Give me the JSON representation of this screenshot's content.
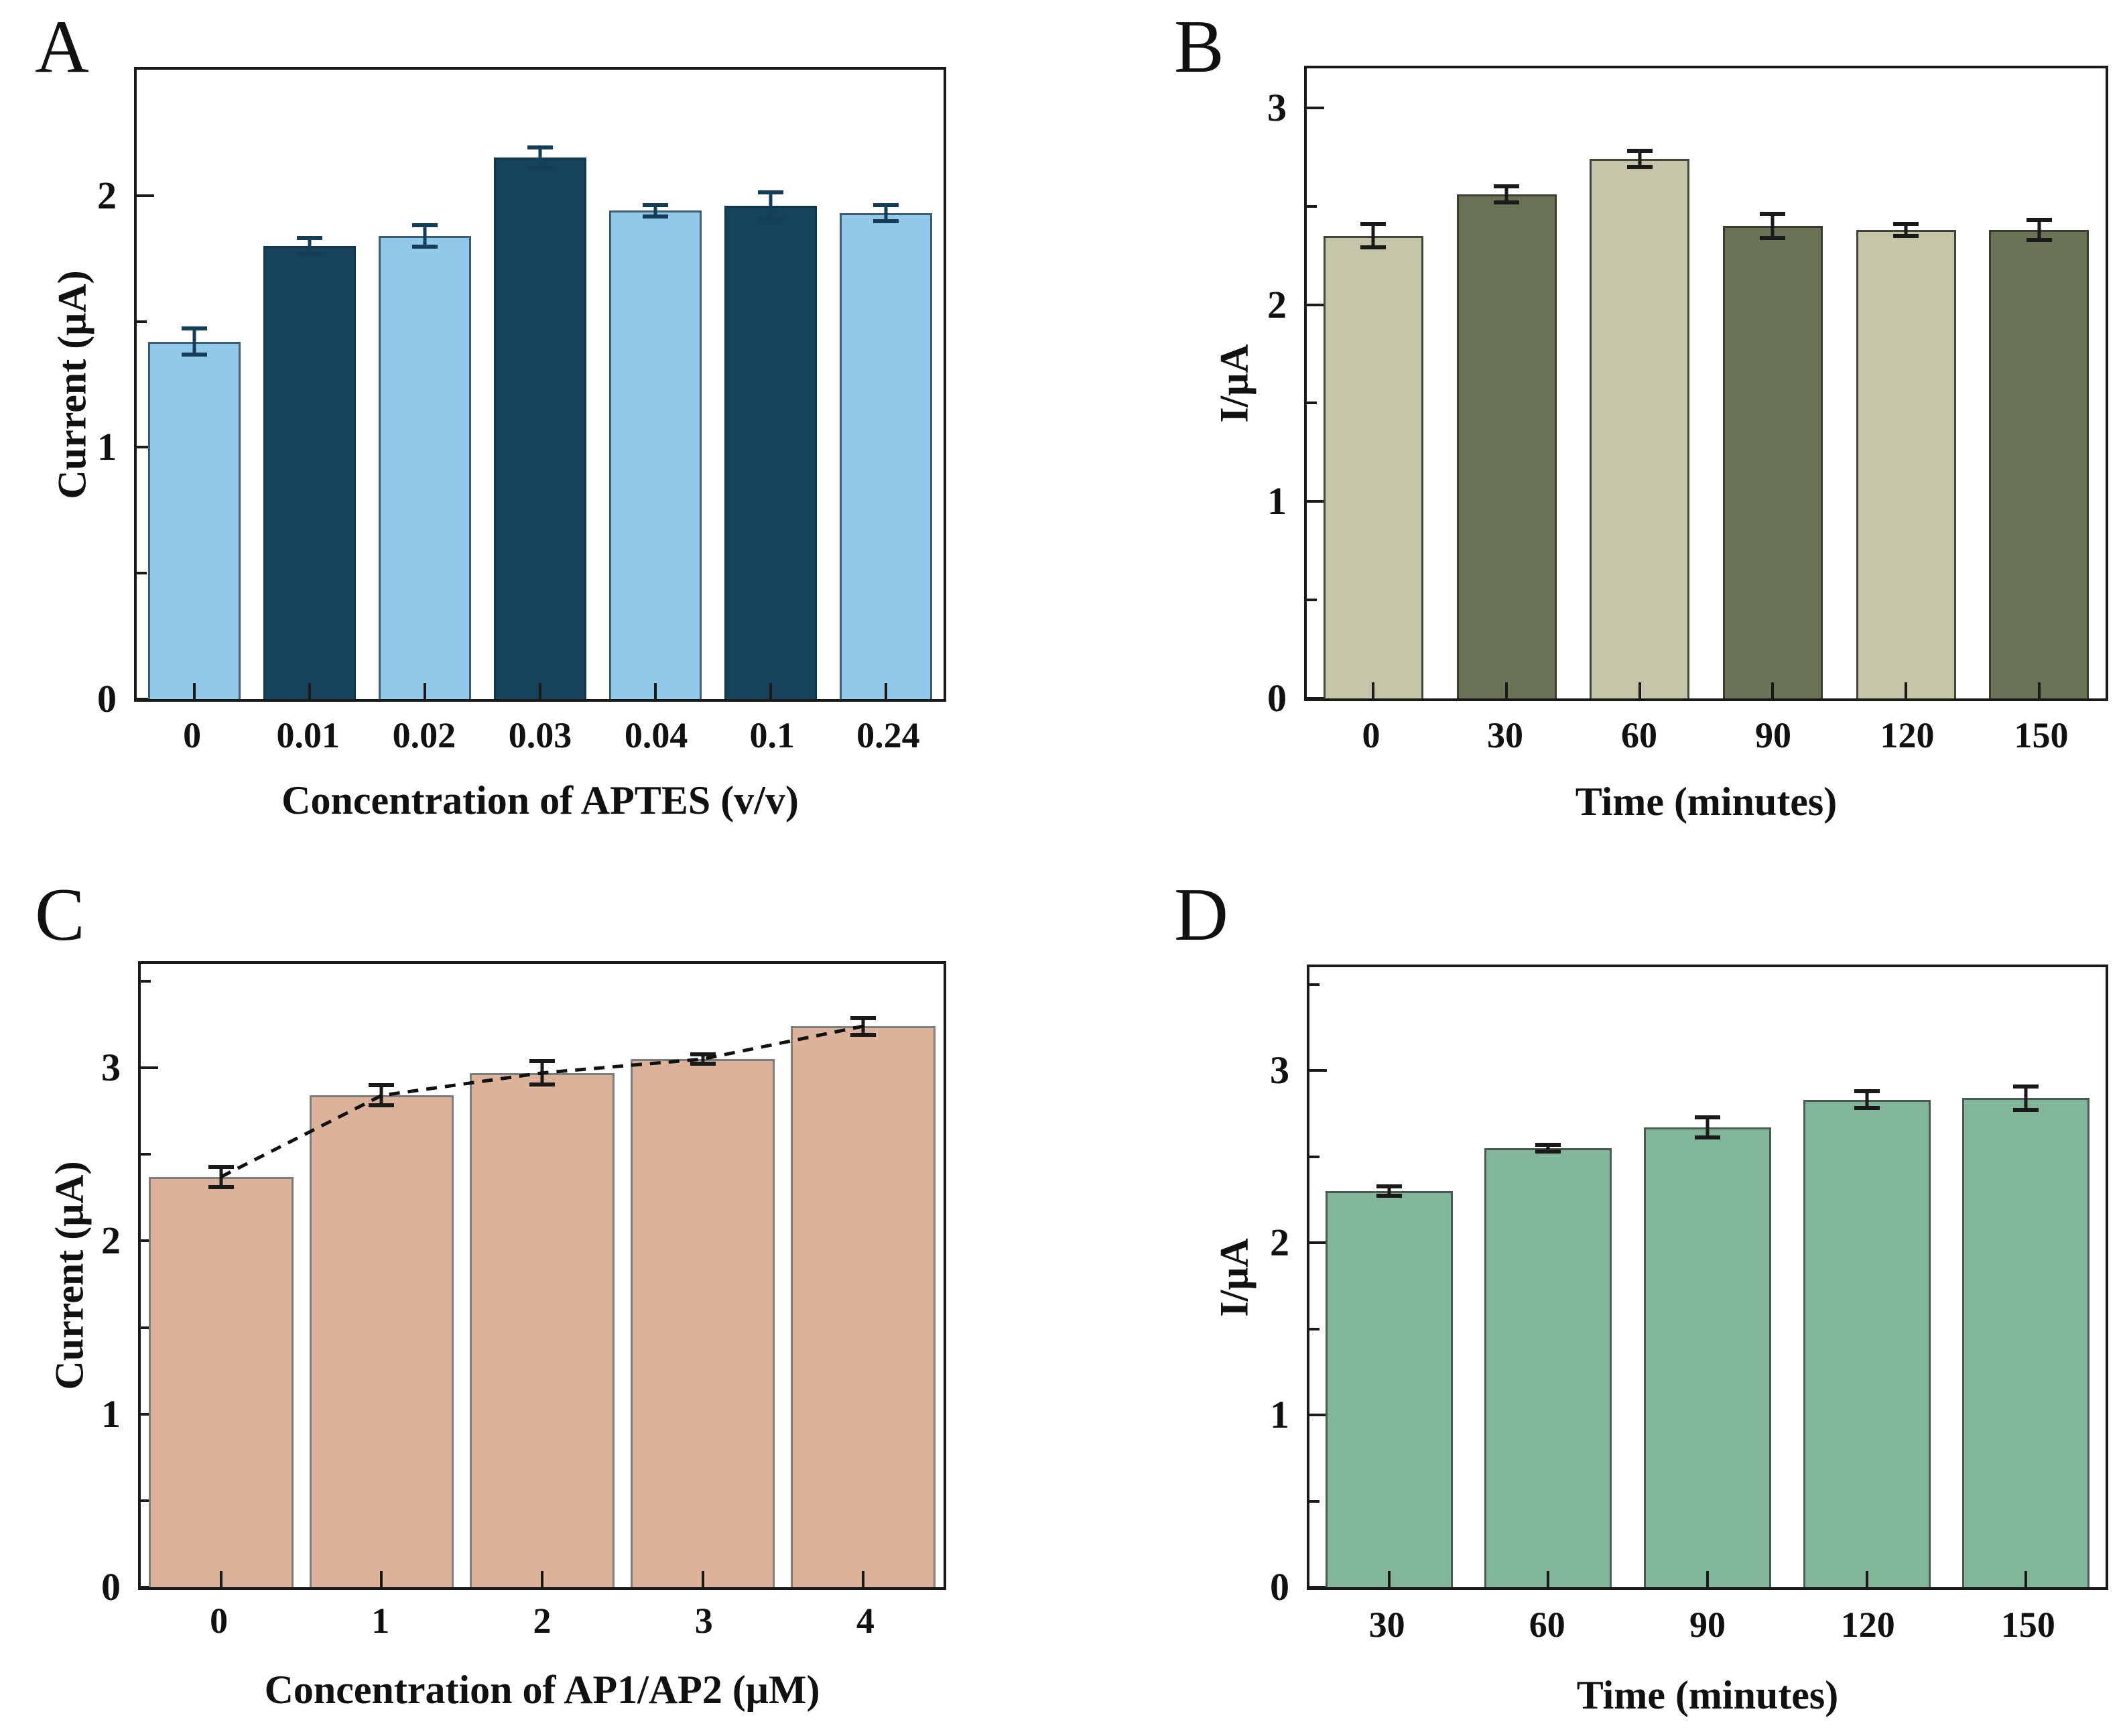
{
  "figure": {
    "background": "#ffffff",
    "axis_color": "#1a1a1a"
  },
  "chart_data": [
    {
      "type": "bar",
      "panel_label": "A",
      "title": "",
      "xlabel": "Concentration of APTES (v/v)",
      "ylabel": "Current (μA)",
      "categories": [
        "0",
        "0.01",
        "0.02",
        "0.03",
        "0.04",
        "0.1",
        "0.24"
      ],
      "values": [
        1.42,
        1.8,
        1.84,
        2.15,
        1.94,
        1.96,
        1.93
      ],
      "errors": [
        0.06,
        0.04,
        0.05,
        0.05,
        0.03,
        0.06,
        0.04
      ],
      "ylim": [
        0,
        2.5
      ],
      "yticks": [
        0,
        1,
        2
      ],
      "minor_tick_step": 0.5,
      "grid": false,
      "legend": null,
      "bar_width_frac": 0.8,
      "bar_colors": [
        "#93c9e8",
        "#16425c",
        "#93c9e8",
        "#16425c",
        "#93c9e8",
        "#16425c",
        "#93c9e8"
      ],
      "bar_border_colors": [
        "#3c5e74",
        "#10374e",
        "#3c5e74",
        "#10374e",
        "#3c5e74",
        "#10374e",
        "#3c5e74"
      ],
      "error_color": "#143d57"
    },
    {
      "type": "bar",
      "panel_label": "B",
      "title": "",
      "xlabel": "Time (minutes)",
      "ylabel": "I/μA",
      "categories": [
        "0",
        "30",
        "60",
        "90",
        "120",
        "150"
      ],
      "values": [
        2.35,
        2.56,
        2.74,
        2.4,
        2.38,
        2.38
      ],
      "errors": [
        0.07,
        0.05,
        0.05,
        0.07,
        0.04,
        0.06
      ],
      "ylim": [
        0,
        3.2
      ],
      "yticks": [
        0,
        1,
        2,
        3
      ],
      "minor_tick_step": 0.5,
      "grid": false,
      "legend": null,
      "bar_width_frac": 0.75,
      "bar_colors": [
        "#c5c5aa",
        "#6b7357",
        "#c5c5aa",
        "#6b7357",
        "#c5c5aa",
        "#6b7357"
      ],
      "bar_border_colors": [
        "#43453a",
        "#383b2e",
        "#43453a",
        "#383b2e",
        "#43453a",
        "#383b2e"
      ],
      "error_color": "#1a1a1a"
    },
    {
      "type": "bar",
      "panel_label": "C",
      "title": "",
      "xlabel": "Concentration of AP1/AP2 (μM)",
      "ylabel": "Current (μA)",
      "categories": [
        "0",
        "1",
        "2",
        "3",
        "4"
      ],
      "values": [
        2.37,
        2.84,
        2.97,
        3.05,
        3.24
      ],
      "errors": [
        0.07,
        0.07,
        0.08,
        0.04,
        0.06
      ],
      "ylim": [
        0,
        3.6
      ],
      "yticks": [
        0,
        1,
        2,
        3
      ],
      "minor_tick_step": 0.5,
      "grid": false,
      "legend": null,
      "bar_width_frac": 0.9,
      "bar_colors": [
        "#dcb29a",
        "#dcb29a",
        "#dcb29a",
        "#dcb29a",
        "#dcb29a"
      ],
      "bar_border_colors": [
        "#7d7d7d",
        "#7d7d7d",
        "#7d7d7d",
        "#7d7d7d",
        "#7d7d7d"
      ],
      "error_color": "#1a1a1a",
      "line_overlay": {
        "show": true,
        "color": "#111111",
        "dash": "16 12",
        "width": 5
      }
    },
    {
      "type": "bar",
      "panel_label": "D",
      "title": "",
      "xlabel": "Time (minutes)",
      "ylabel": "I/μA",
      "categories": [
        "30",
        "60",
        "90",
        "120",
        "150"
      ],
      "values": [
        2.3,
        2.55,
        2.67,
        2.83,
        2.84
      ],
      "errors": [
        0.04,
        0.03,
        0.07,
        0.06,
        0.08
      ],
      "ylim": [
        0,
        3.6
      ],
      "yticks": [
        0,
        1,
        2,
        3
      ],
      "minor_tick_step": 0.5,
      "grid": false,
      "legend": null,
      "bar_width_frac": 0.8,
      "bar_colors": [
        "#81b69b",
        "#81b69b",
        "#81b69b",
        "#81b69b",
        "#81b69b"
      ],
      "bar_border_colors": [
        "#4c5a52",
        "#4c5a52",
        "#4c5a52",
        "#4c5a52",
        "#4c5a52"
      ],
      "error_color": "#1a1a1a"
    }
  ]
}
